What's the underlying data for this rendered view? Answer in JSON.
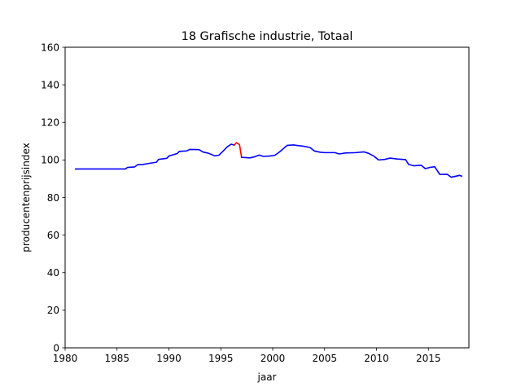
{
  "chart_data": {
    "type": "line",
    "title": "18 Grafische industrie, Totaal",
    "xlabel": "jaar",
    "ylabel": "producentenprijsindex",
    "xlim": [
      1980,
      2018.9
    ],
    "ylim": [
      0,
      160
    ],
    "xticks": [
      1980,
      1985,
      1990,
      1995,
      2000,
      2005,
      2010,
      2015
    ],
    "yticks": [
      0,
      20,
      40,
      60,
      80,
      100,
      120,
      140,
      160
    ],
    "grid": false,
    "legend": "none",
    "series": [
      {
        "color": "#0000ff",
        "points": [
          [
            1981.0,
            95.2
          ],
          [
            1985.8,
            95.2
          ],
          [
            1986.0,
            96.0
          ],
          [
            1986.7,
            96.3
          ],
          [
            1987.0,
            97.5
          ],
          [
            1987.5,
            97.6
          ],
          [
            1988.0,
            98.1
          ],
          [
            1988.8,
            98.8
          ],
          [
            1989.0,
            100.3
          ],
          [
            1989.8,
            100.9
          ],
          [
            1990.0,
            102.1
          ],
          [
            1990.8,
            103.4
          ],
          [
            1991.0,
            104.6
          ],
          [
            1991.7,
            104.8
          ],
          [
            1992.0,
            105.6
          ],
          [
            1992.9,
            105.5
          ],
          [
            1993.3,
            104.2
          ],
          [
            1993.8,
            103.6
          ],
          [
            1994.4,
            102.2
          ],
          [
            1994.8,
            102.5
          ],
          [
            1995.2,
            104.6
          ],
          [
            1995.6,
            106.9
          ],
          [
            1996.0,
            108.4
          ],
          [
            1996.3,
            107.9
          ]
        ]
      },
      {
        "color": "#ff0000",
        "points": [
          [
            1996.3,
            107.9
          ],
          [
            1996.5,
            109.2
          ],
          [
            1996.8,
            108.2
          ],
          [
            1997.0,
            101.4
          ]
        ]
      },
      {
        "color": "#0000ff",
        "points": [
          [
            1997.0,
            101.4
          ],
          [
            1997.8,
            101.1
          ],
          [
            1998.2,
            101.6
          ],
          [
            1998.7,
            102.6
          ],
          [
            1999.1,
            101.9
          ],
          [
            1999.7,
            102.1
          ],
          [
            2000.2,
            102.5
          ],
          [
            2000.6,
            104.0
          ],
          [
            2001.0,
            105.9
          ],
          [
            2001.4,
            107.8
          ],
          [
            2002.0,
            108.0
          ],
          [
            2002.5,
            107.6
          ],
          [
            2003.0,
            107.3
          ],
          [
            2003.6,
            106.6
          ],
          [
            2004.0,
            104.8
          ],
          [
            2004.6,
            104.1
          ],
          [
            2005.0,
            103.9
          ],
          [
            2006.0,
            103.9
          ],
          [
            2006.4,
            103.2
          ],
          [
            2007.0,
            103.7
          ],
          [
            2008.0,
            103.9
          ],
          [
            2008.8,
            104.3
          ],
          [
            2009.2,
            103.6
          ],
          [
            2009.7,
            102.2
          ],
          [
            2010.2,
            100.0
          ],
          [
            2010.8,
            100.3
          ],
          [
            2011.3,
            101.0
          ],
          [
            2012.0,
            100.5
          ],
          [
            2012.8,
            100.2
          ],
          [
            2013.1,
            97.6
          ],
          [
            2013.6,
            96.9
          ],
          [
            2014.3,
            97.2
          ],
          [
            2014.7,
            95.4
          ],
          [
            2015.2,
            96.1
          ],
          [
            2015.6,
            96.4
          ],
          [
            2016.1,
            92.3
          ],
          [
            2016.8,
            92.4
          ],
          [
            2017.2,
            90.8
          ],
          [
            2017.6,
            91.3
          ],
          [
            2018.0,
            91.8
          ],
          [
            2018.2,
            91.4
          ]
        ]
      }
    ]
  }
}
